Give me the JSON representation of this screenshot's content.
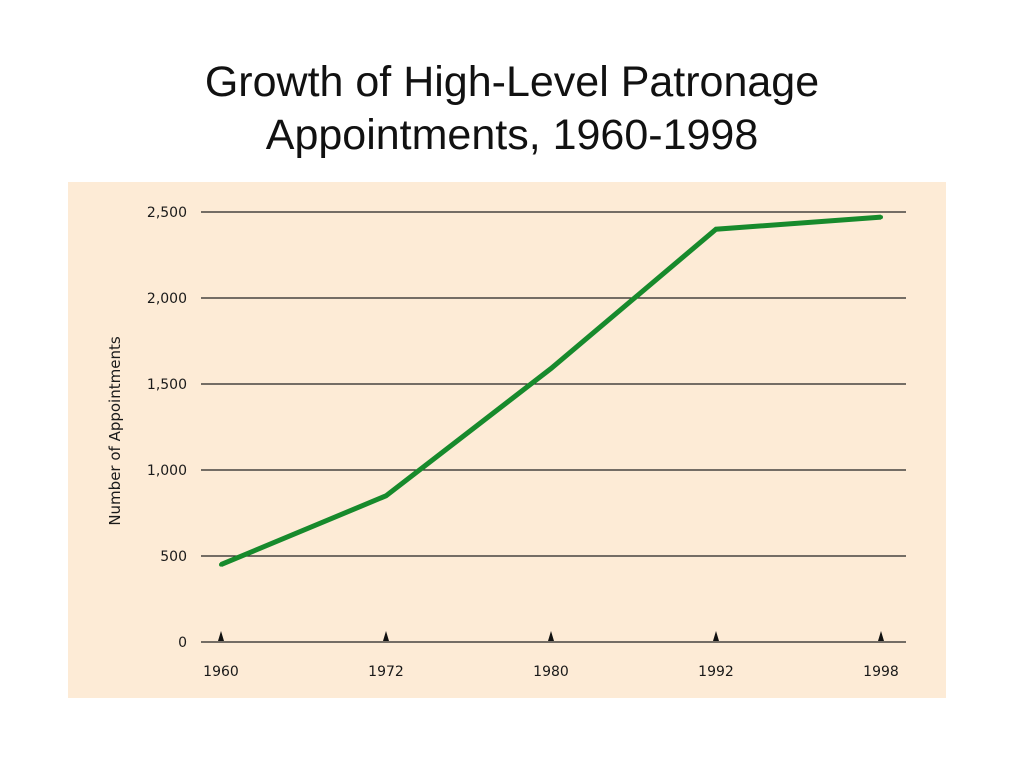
{
  "title_lines": [
    "Growth of High-Level Patronage",
    "Appointments, 1960-1998"
  ],
  "colors": {
    "panel_background": "#fdebd6",
    "line": "#178a2c",
    "gridline": "#222222"
  },
  "chart_data": {
    "type": "line",
    "title": "Growth of High-Level Patronage Appointments, 1960-1998",
    "xlabel": "",
    "ylabel": "Number of Appointments",
    "x": [
      "1960",
      "1972",
      "1980",
      "1992",
      "1998"
    ],
    "series": [
      {
        "values": [
          450,
          850,
          1590,
          2400,
          2470
        ]
      }
    ],
    "ylim": [
      0,
      2500
    ],
    "yticks": [
      0,
      500,
      1000,
      1500,
      2000,
      2500
    ],
    "ytick_labels": [
      "0",
      "500",
      "1,000",
      "1,500",
      "2,000",
      "2,500"
    ],
    "grid": true,
    "legend": "none"
  }
}
